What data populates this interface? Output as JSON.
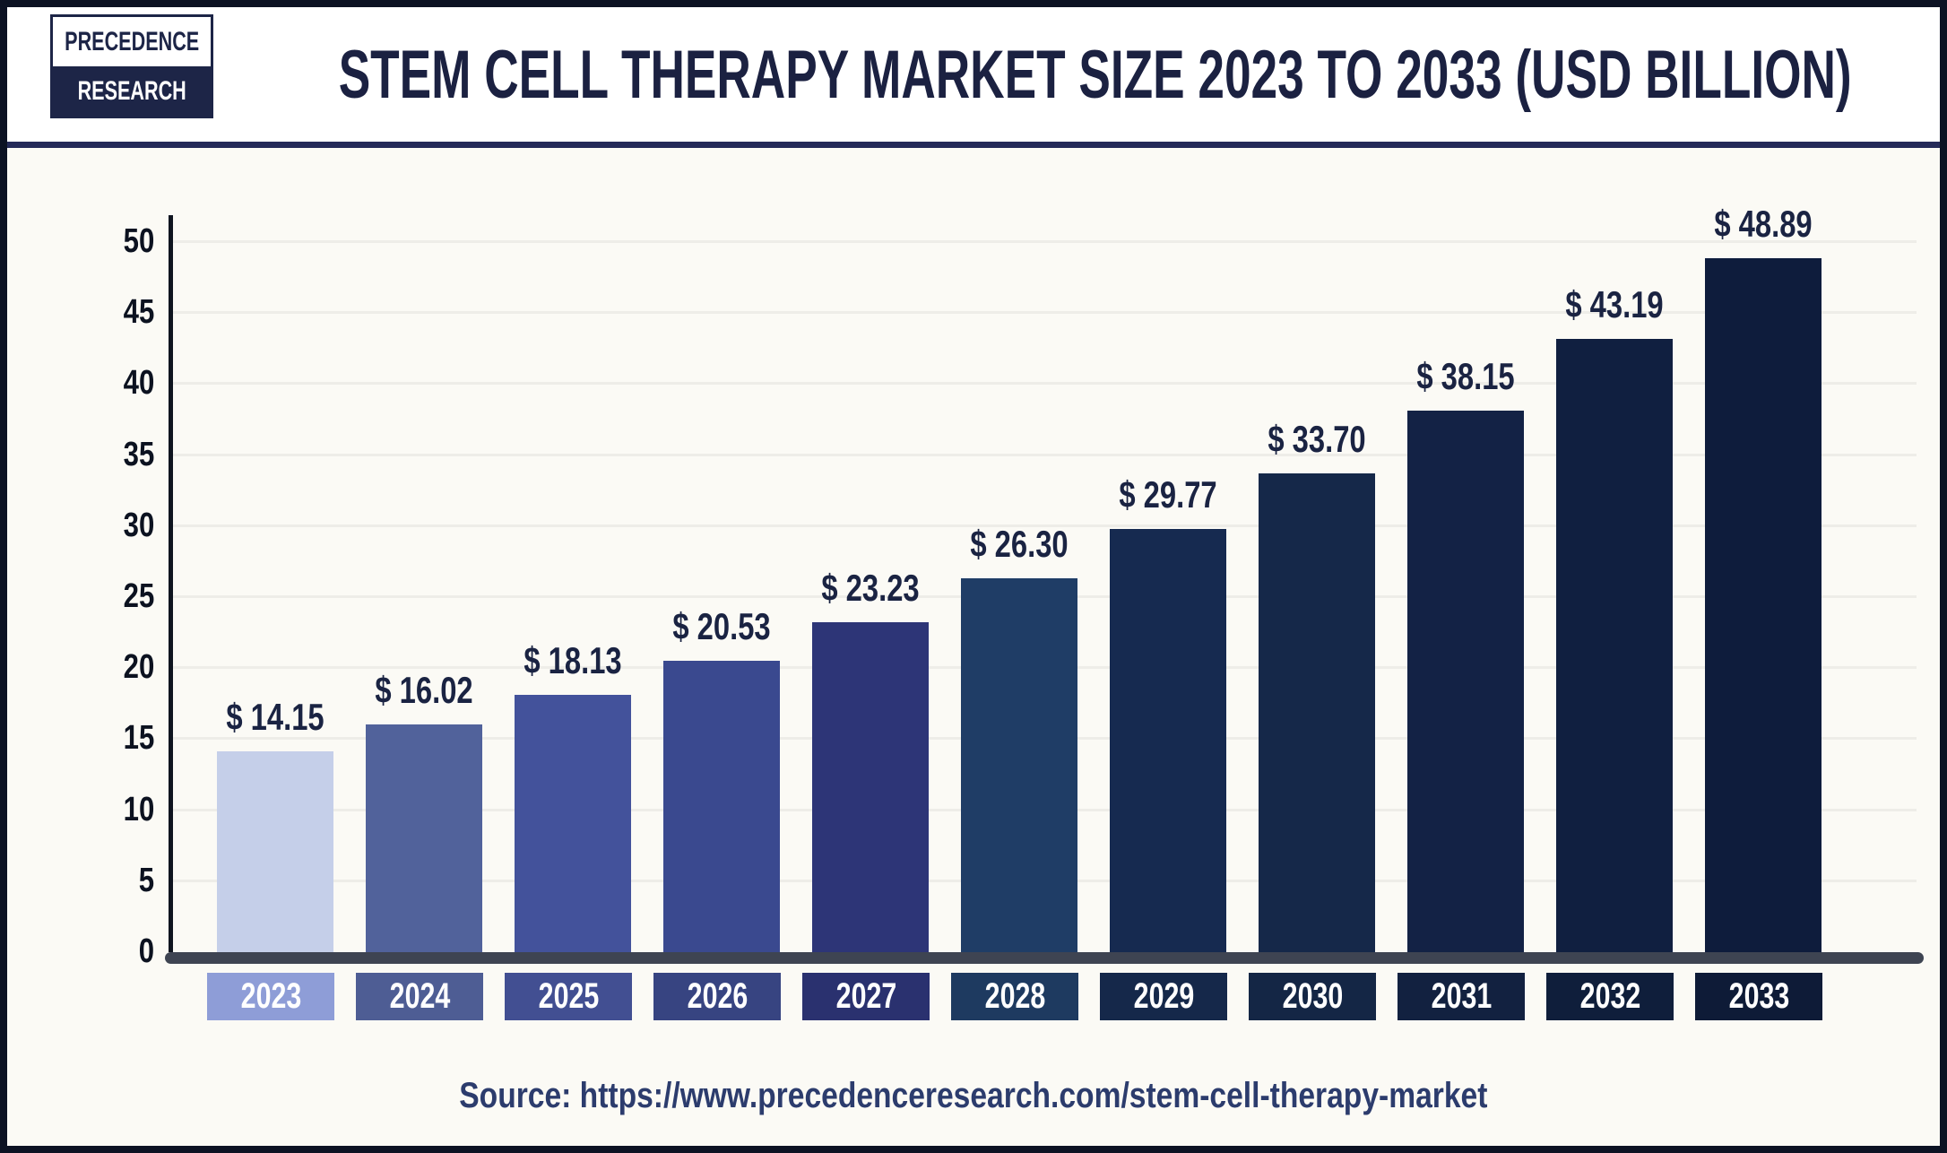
{
  "logo": {
    "line1": "PRECEDENCE",
    "line2": "RESEARCH"
  },
  "header": {
    "title": "STEM CELL THERAPY MARKET SIZE 2023 TO 2033 (USD BILLION)"
  },
  "source": {
    "text": "Source: https://www.precedenceresearch.com/stem-cell-therapy-market"
  },
  "chart_data": {
    "type": "bar",
    "title": "STEM CELL THERAPY MARKET SIZE 2023 TO 2033 (USD BILLION)",
    "unit": "USD Billion",
    "categories": [
      "2023",
      "2024",
      "2025",
      "2026",
      "2027",
      "2028",
      "2029",
      "2030",
      "2031",
      "2032",
      "2033"
    ],
    "values": [
      14.15,
      16.02,
      18.13,
      20.53,
      23.23,
      26.3,
      29.77,
      33.7,
      38.15,
      43.19,
      48.89
    ],
    "value_labels": [
      "$ 14.15",
      "$ 16.02",
      "$ 18.13",
      "$ 20.53",
      "$ 23.23",
      "$ 26.30",
      "$ 29.77",
      "$ 33.70",
      "$ 38.15",
      "$ 43.19",
      "$ 48.89"
    ],
    "xlabel": "",
    "ylabel": "",
    "ylim": [
      0,
      50
    ],
    "yticks": [
      0,
      5,
      10,
      15,
      20,
      25,
      30,
      35,
      40,
      45,
      50
    ],
    "grid": "horizontal",
    "legend": "none",
    "bar_colors": [
      "#c5cfe9",
      "#51629b",
      "#43529b",
      "#3a498f",
      "#2d3577",
      "#1f3d66",
      "#162a50",
      "#152849",
      "#132245",
      "#101f40",
      "#0e1c3c"
    ],
    "category_box_colors": [
      "#8e9dd7",
      "#4e5d94",
      "#424f92",
      "#374481",
      "#2a316f",
      "#1e3a60",
      "#15284a",
      "#142645",
      "#122140",
      "#0f1e3b",
      "#0e1b37"
    ],
    "gridline_color": "#eeede8",
    "axis_color": "#0f141f",
    "baseline_color": "#3e4452",
    "value_label_color": "#1a2342",
    "tick_label_color": "#0c1220",
    "source_color": "#2c3c6d",
    "separator_color": "#242a58",
    "header_background": "#ffffff",
    "background": "#fbfaf5"
  }
}
